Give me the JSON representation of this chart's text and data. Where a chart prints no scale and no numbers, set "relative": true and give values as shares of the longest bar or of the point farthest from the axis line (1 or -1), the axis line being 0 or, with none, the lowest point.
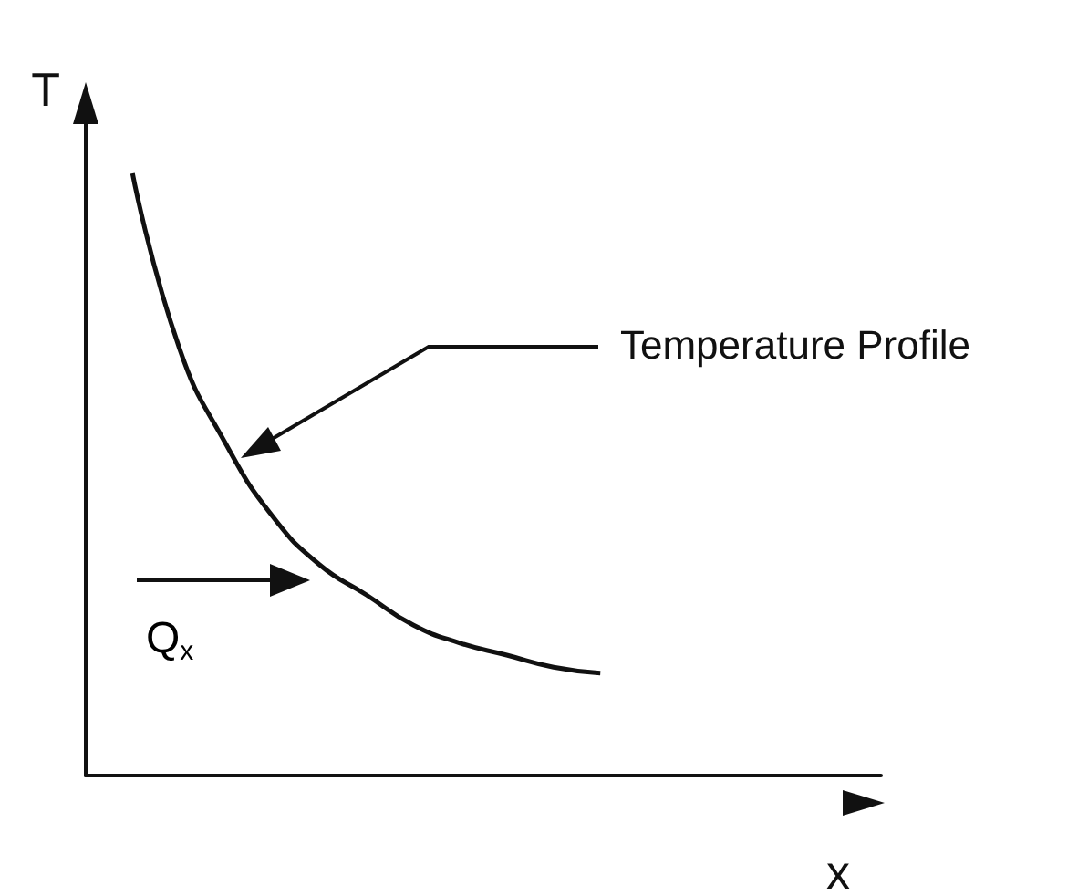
{
  "chart_data": {
    "type": "line",
    "relative": true,
    "xlabel": "x",
    "ylabel": "T",
    "color": "#111111",
    "marker": "none",
    "categories": [
      null,
      null,
      null,
      null,
      null,
      null,
      null,
      null,
      null,
      null,
      null,
      null,
      null,
      null,
      null,
      null,
      null,
      null
    ],
    "values": [
      null,
      1,
      0.71,
      0.55,
      0.43,
      0.35,
      0.3,
      0.25,
      0.22,
      0.2,
      0.18,
      0.17,
      null,
      null,
      null,
      null,
      null,
      null
    ],
    "annotations": [
      "Temperature Profile",
      "Q$_{x}$"
    ]
  }
}
